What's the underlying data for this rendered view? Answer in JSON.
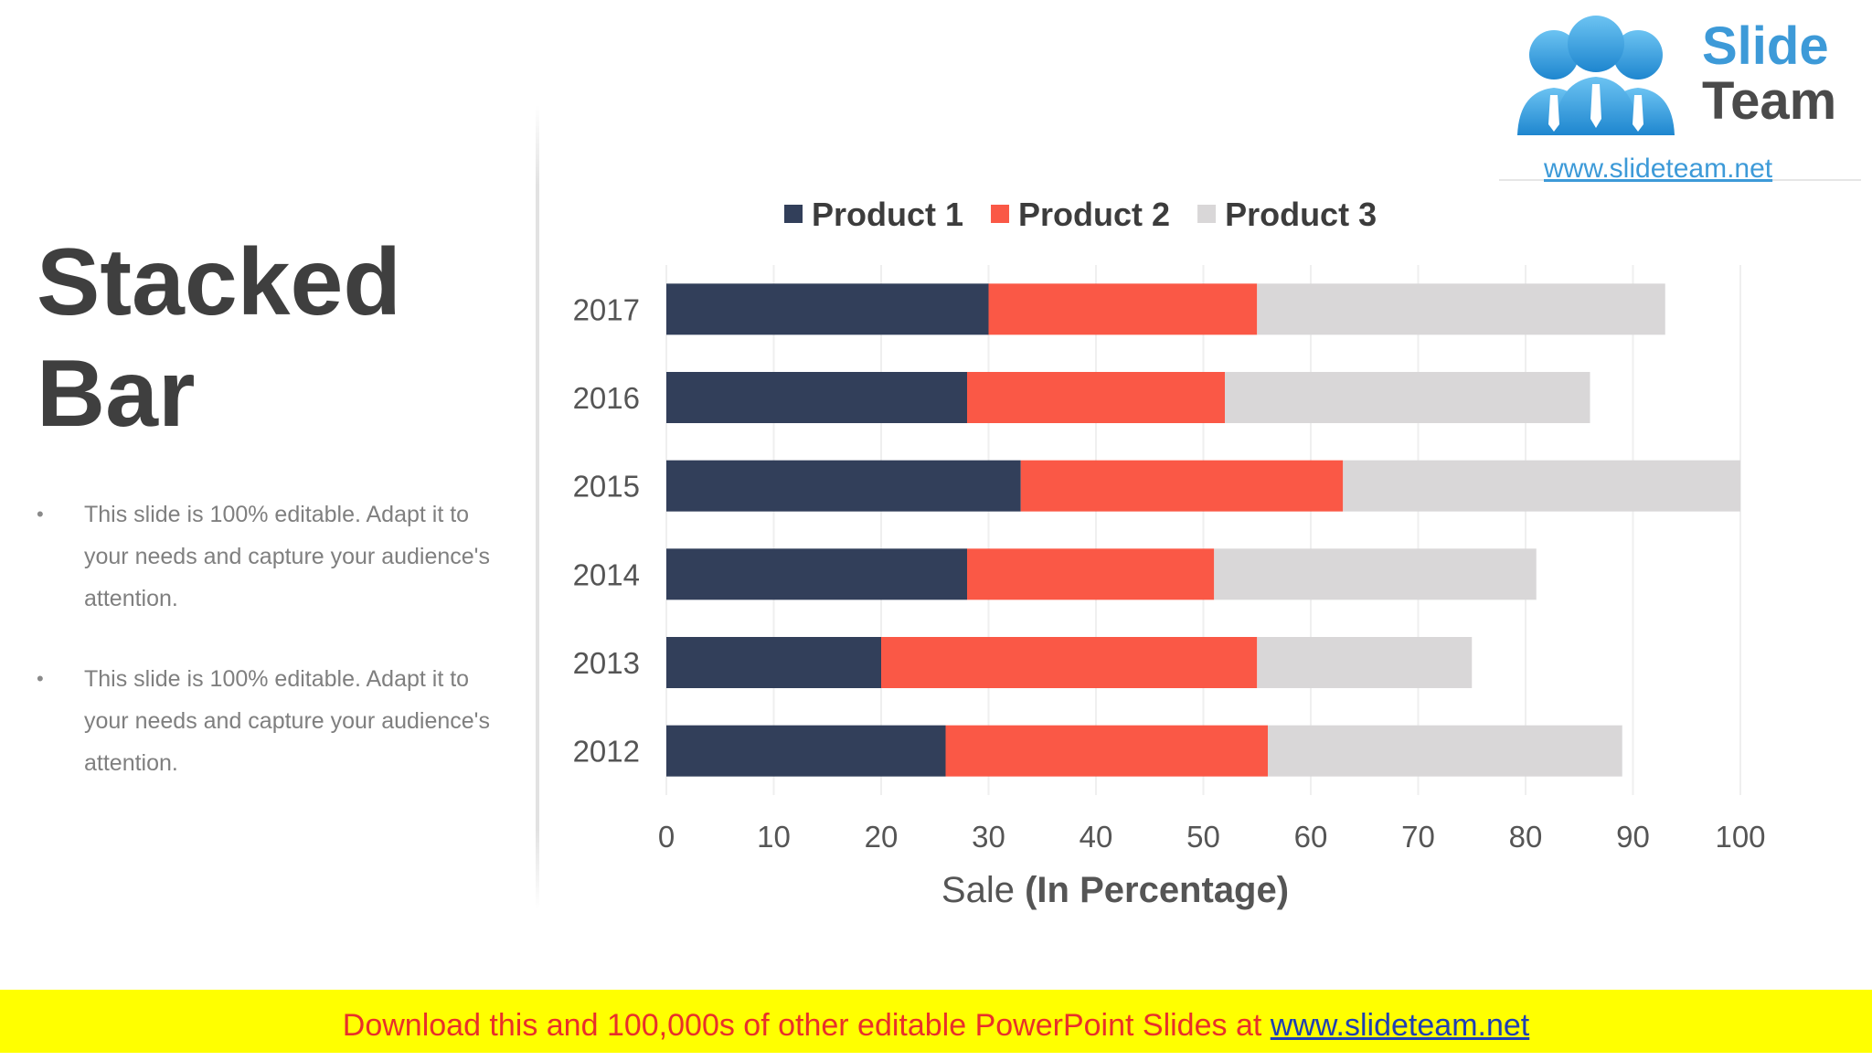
{
  "slide": {
    "title_line1": "Stacked",
    "title_line2": "Bar",
    "bullets": [
      "This slide is 100% editable. Adapt it to your needs and capture your audience's attention.",
      "This slide is 100% editable. Adapt it to your needs and capture your audience's attention."
    ]
  },
  "logo": {
    "word1": "Slide",
    "word2": "Team",
    "url": "www.slideteam.net"
  },
  "footer": {
    "text": "Download this and 100,000s of other editable PowerPoint Slides at ",
    "link": "www.slideteam.net"
  },
  "chart_data": {
    "type": "bar",
    "orientation": "horizontal",
    "stacked": true,
    "categories": [
      "2017",
      "2016",
      "2015",
      "2014",
      "2013",
      "2012"
    ],
    "series": [
      {
        "name": "Product 1",
        "color": "#323f5a",
        "values": [
          30,
          28,
          33,
          28,
          20,
          26
        ]
      },
      {
        "name": "Product 2",
        "color": "#fa5846",
        "values": [
          25,
          24,
          30,
          23,
          35,
          30
        ]
      },
      {
        "name": "Product 3",
        "color": "#d9d7d8",
        "values": [
          38,
          34,
          37,
          30,
          20,
          33
        ]
      }
    ],
    "xlabel": "Sale ",
    "xlabel_bold": "(In Percentage)",
    "xlim": [
      0,
      100
    ],
    "xticks": [
      0,
      10,
      20,
      30,
      40,
      50,
      60,
      70,
      80,
      90,
      100
    ],
    "grid": true,
    "legend": "top"
  }
}
